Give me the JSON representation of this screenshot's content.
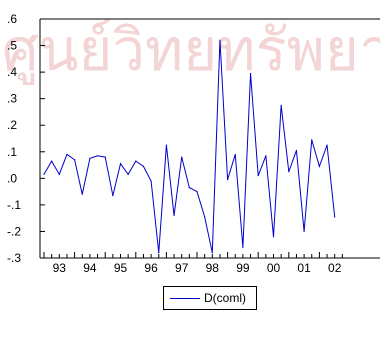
{
  "watermark": {
    "text": "ศูนย์วิทยทรัพยากร",
    "color": "#f3d5d5"
  },
  "chart_data": {
    "type": "line",
    "title": "",
    "xlabel": "",
    "ylabel": "",
    "grid": false,
    "legend_position": "bottom-center",
    "x_axis": {
      "tick_labels": [
        "93",
        "94",
        "95",
        "96",
        "97",
        "98",
        "99",
        "00",
        "01",
        "02"
      ],
      "start_year": 1993,
      "periods_per_year": 4
    },
    "ylim": [
      -0.3,
      0.6
    ],
    "y_ticks": [
      -0.3,
      -0.2,
      -0.1,
      0.0,
      0.1,
      0.2,
      0.3,
      0.4,
      0.5,
      0.6
    ],
    "y_tick_labels": [
      "-.3",
      "-.2",
      "-.1",
      ".0",
      ".1",
      ".2",
      ".3",
      ".4",
      ".5",
      ".6"
    ],
    "series": [
      {
        "name": "D(coml)",
        "color": "#0000cc",
        "values": [
          0.015,
          0.065,
          0.015,
          0.09,
          0.07,
          -0.06,
          0.075,
          0.085,
          0.08,
          -0.065,
          0.055,
          0.015,
          0.065,
          0.045,
          -0.01,
          -0.28,
          0.125,
          -0.14,
          0.08,
          -0.035,
          -0.05,
          -0.145,
          -0.28,
          0.52,
          -0.005,
          0.09,
          -0.26,
          0.395,
          0.01,
          0.085,
          -0.22,
          0.275,
          0.025,
          0.105,
          -0.2,
          0.145,
          0.045,
          0.125,
          -0.145
        ]
      }
    ]
  }
}
